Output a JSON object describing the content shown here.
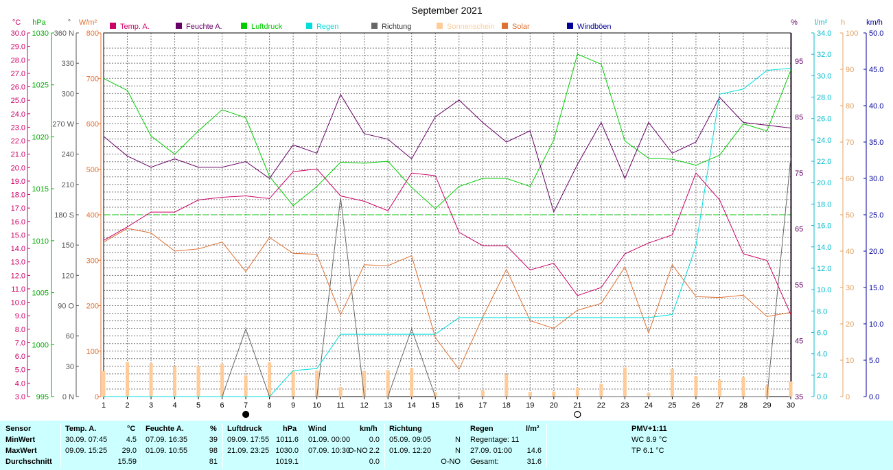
{
  "title": "September 2021",
  "legend": [
    {
      "label": "Temp. A.",
      "color": "#cc0066"
    },
    {
      "label": "Feuchte A.",
      "color": "#660066"
    },
    {
      "label": "Luftdruck",
      "color": "#00cc00"
    },
    {
      "label": "Regen",
      "color": "#00dddd"
    },
    {
      "label": "Richtung",
      "color": "#666666"
    },
    {
      "label": "Sonnenschein",
      "color": "#ffcc99"
    },
    {
      "label": "Solar",
      "color": "#e07030"
    },
    {
      "label": "Windböen",
      "color": "#000099"
    }
  ],
  "axes_units": {
    "temp": "°C",
    "pressure": "hPa",
    "direction": "°",
    "solar": "W/m²",
    "humidity": "%",
    "rain": "l/m²",
    "sun": "h",
    "wind": "km/h"
  },
  "axis_ticks": {
    "temp": [
      "30.0",
      "29.0",
      "28.0",
      "27.0",
      "26.0",
      "25.0",
      "24.0",
      "23.0",
      "22.0",
      "21.0",
      "20.0",
      "19.0",
      "18.0",
      "17.0",
      "16.0",
      "15.0",
      "14.0",
      "13.0",
      "12.0",
      "11.0",
      "10.0",
      "9.0",
      "8.0",
      "7.0",
      "6.0",
      "5.0",
      "4.0",
      "3.0"
    ],
    "pressure": [
      "1030",
      "1025",
      "1020",
      "1015",
      "1010",
      "1005",
      "1000",
      "995"
    ],
    "direction": [
      "360 N",
      "330",
      "300",
      "270 W",
      "240",
      "210",
      "180 S",
      "150",
      "120",
      "90 O",
      "60",
      "30",
      "0 N"
    ],
    "solar": [
      "800",
      "700",
      "600",
      "500",
      "400",
      "300",
      "200",
      "100",
      "0"
    ],
    "humidity": [
      "95",
      "85",
      "75",
      "65",
      "55",
      "45",
      "35"
    ],
    "rain": [
      "34.0",
      "32.0",
      "30.0",
      "28.0",
      "26.0",
      "24.0",
      "22.0",
      "20.0",
      "18.0",
      "16.0",
      "14.0",
      "12.0",
      "10.0",
      "8.0",
      "6.0",
      "4.0",
      "2.0",
      "0.0"
    ],
    "sun": [
      "100",
      "90",
      "80",
      "70",
      "60",
      "50",
      "40",
      "30",
      "20",
      "10",
      "0"
    ],
    "wind": [
      "50.0",
      "45.0",
      "40.0",
      "35.0",
      "30.0",
      "25.0",
      "20.0",
      "15.0",
      "10.0",
      "5.0",
      "0.0"
    ]
  },
  "chart_data": {
    "type": "line",
    "title": "September 2021",
    "x": [
      1,
      2,
      3,
      4,
      5,
      6,
      7,
      8,
      9,
      10,
      11,
      12,
      13,
      14,
      15,
      16,
      17,
      18,
      19,
      20,
      21,
      22,
      23,
      24,
      25,
      26,
      27,
      28,
      29,
      30
    ],
    "xlim": [
      1,
      30
    ],
    "grid": true,
    "legend_position": "top",
    "moon_markers": [
      {
        "day": 7,
        "phase": "new"
      },
      {
        "day": 21,
        "phase": "full"
      }
    ],
    "series": [
      {
        "name": "Temp. A.",
        "axis": "temp",
        "ylim": [
          3,
          30
        ],
        "color": "#cc0066",
        "values": [
          14.6,
          15.6,
          16.7,
          16.7,
          17.6,
          17.8,
          17.9,
          17.7,
          19.7,
          19.9,
          17.9,
          17.5,
          16.8,
          19.6,
          19.4,
          15.2,
          14.2,
          14.2,
          12.4,
          12.9,
          10.5,
          11.1,
          13.6,
          14.4,
          15.0,
          19.6,
          17.6,
          13.6,
          13.1,
          9.1
        ]
      },
      {
        "name": "Feuchte A.",
        "axis": "humidity",
        "ylim": [
          35,
          100
        ],
        "color": "#660066",
        "values": [
          81.5,
          78.0,
          76.0,
          77.5,
          76.0,
          76.0,
          77.0,
          74.0,
          80.0,
          78.5,
          89.0,
          82.0,
          81.0,
          77.5,
          85.0,
          88.0,
          84.0,
          80.5,
          82.5,
          68.0,
          76.5,
          84.0,
          74.0,
          84.0,
          78.5,
          80.5,
          88.5,
          84.0,
          83.5,
          83.0
        ]
      },
      {
        "name": "Luftdruck",
        "axis": "pressure",
        "ylim": [
          995,
          1031
        ],
        "color": "#00cc00",
        "values": [
          1026.5,
          1025.3,
          1020.8,
          1019.0,
          1021.3,
          1023.4,
          1022.6,
          1016.8,
          1013.9,
          1015.8,
          1018.2,
          1018.1,
          1018.3,
          1015.7,
          1013.6,
          1015.8,
          1016.6,
          1016.6,
          1015.8,
          1020.4,
          1028.9,
          1027.9,
          1020.3,
          1018.6,
          1018.5,
          1017.9,
          1018.9,
          1022.0,
          1021.3,
          1027.3
        ]
      },
      {
        "name": "Regen",
        "axis": "rain",
        "ylim": [
          0,
          35
        ],
        "color": "#00dddd",
        "values": [
          0,
          0,
          0,
          0,
          0,
          0,
          0,
          0,
          2.5,
          2.7,
          6.0,
          6.0,
          6.0,
          6.0,
          6.0,
          7.6,
          7.6,
          7.6,
          7.6,
          7.6,
          7.6,
          7.6,
          7.6,
          7.6,
          7.9,
          14.5,
          29.1,
          29.6,
          31.4,
          31.6
        ]
      },
      {
        "name": "Richtung",
        "axis": "direction",
        "ylim": [
          0,
          360
        ],
        "color": "#666666",
        "values": [
          0,
          0,
          0,
          0,
          0,
          0,
          67,
          0,
          0,
          0,
          197,
          0,
          0,
          67,
          0,
          0,
          0,
          0,
          0,
          0,
          0,
          0,
          0,
          0,
          0,
          0,
          0,
          0,
          0,
          236
        ]
      },
      {
        "name": "Sonnenschein",
        "axis": "sun",
        "ylim": [
          0,
          100
        ],
        "color": "#ffcc99",
        "type": "bar",
        "values": [
          7,
          9.5,
          9.2,
          8.3,
          8.5,
          9,
          5.8,
          9.4,
          7.2,
          7.2,
          2.6,
          7,
          7.3,
          7.8,
          1.2,
          0,
          1.8,
          6.1,
          1.3,
          1.4,
          2.5,
          3.5,
          8,
          1,
          7.6,
          5.6,
          4.6,
          5.4,
          3.1,
          4.2
        ]
      },
      {
        "name": "Solar",
        "axis": "solar",
        "ylim": [
          0,
          800
        ],
        "color": "#e07030",
        "values": [
          340,
          370,
          360,
          320,
          325,
          340,
          275,
          350,
          315,
          313,
          180,
          290,
          288,
          310,
          130,
          60,
          175,
          280,
          167,
          150,
          190,
          205,
          285,
          140,
          290,
          220,
          218,
          223,
          176,
          185
        ]
      }
    ]
  },
  "table": {
    "col_sensor": {
      "header": "Sensor",
      "rows": [
        "MinWert",
        "MaxWert",
        "Durchschnitt"
      ]
    },
    "temp": {
      "header": "Temp. A.",
      "unit": "°C",
      "min": {
        "time": "30.09.  07:45",
        "value": "4.5"
      },
      "max": {
        "time": "09.09.  15:25",
        "value": "29.0"
      },
      "avg": "15.59"
    },
    "humidity": {
      "header": "Feuchte A.",
      "unit": "%",
      "min": {
        "time": "07.09.  16:35",
        "value": "39"
      },
      "max": {
        "time": "01.09.  10:55",
        "value": "98"
      },
      "avg": "81"
    },
    "pressure": {
      "header": "Luftdruck",
      "unit": "hPa",
      "min": {
        "time": "09.09.  17:55",
        "value": "1011.6"
      },
      "max": {
        "time": "21.09.  23:25",
        "value": "1030.0"
      },
      "avg": "1019.1"
    },
    "wind": {
      "header": "Wind",
      "unit": "km/h",
      "min": {
        "time": "01.09.  00:00",
        "value": "0.0"
      },
      "max": {
        "time": "07.09.  10:30",
        "dir": "O-NO",
        "value": "2.2"
      },
      "avg": "0.0"
    },
    "direction": {
      "header": "Richtung",
      "min": {
        "time": "05.09.  09:05",
        "value": "N"
      },
      "max": {
        "time": "01.09.  12:20",
        "value": "N"
      },
      "avg": "O-NO"
    },
    "rain": {
      "header": "Regen",
      "unit": "l/m²",
      "row1": "Regentage: 11",
      "row2_time": "27.09.  01:00",
      "row2_value": "14.6",
      "row3_label": "Gesamt:",
      "row3_value": "31.6"
    },
    "pmv": {
      "header": "PMV+1:11",
      "wc": "WC 8.9 °C",
      "tp": "TP 6.1 °C"
    }
  }
}
